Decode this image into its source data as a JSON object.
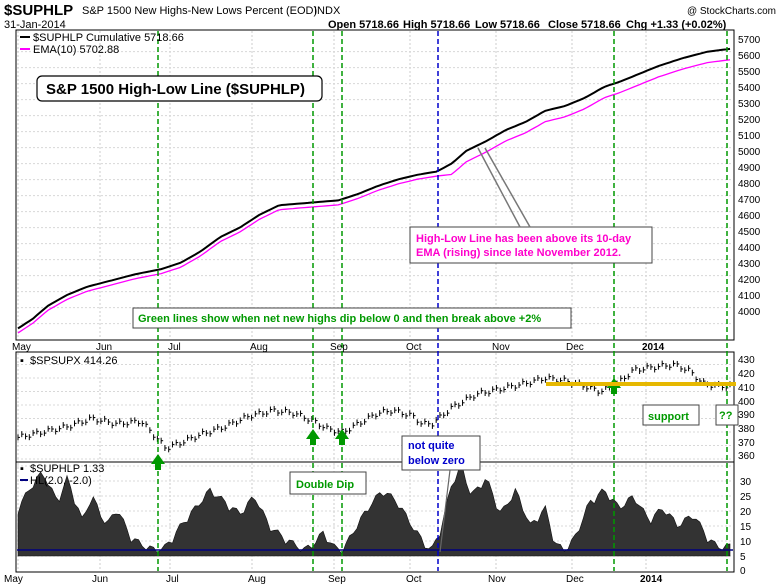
{
  "header": {
    "symbol": "$SUPHLP",
    "description": "S&P 1500 New Highs-New Lows Percent (EOD)",
    "exchange": "INDX",
    "date": "31-Jan-2014",
    "open": "Open 5718.66",
    "high": "High 5718.66",
    "low": "Low 5718.66",
    "close": "Close 5718.66",
    "chg": "Chg +1.33 (+0.02%)",
    "watermark": "@ StockCharts.com"
  },
  "colors": {
    "price_line": "#000000",
    "ema_line": "#ff00ff",
    "signal_green": "#009900",
    "signal_blue": "#0000cc",
    "support_yellow": "#e6b800",
    "hl_fill": "#333333",
    "hl_line": "#000080",
    "annot_magenta": "#ff00cc"
  },
  "months": [
    "May",
    "Jun",
    "Jul",
    "Aug",
    "Sep",
    "Oct",
    "Nov",
    "Dec",
    "2014"
  ],
  "panels": {
    "top": {
      "legend1": "$SUPHLP Cumulative 5718.66",
      "legend2": "EMA(10) 5702.88",
      "title_box": "S&P 1500 High-Low Line ($SUPHLP)",
      "note_green": "Green lines show when net new highs dip below 0 and then break above +2%",
      "note_magenta_1": "High-Low Line has been above its 10-day",
      "note_magenta_2": "EMA (rising) since late November 2012.",
      "ticks": [
        "5700",
        "5600",
        "5500",
        "5400",
        "5300",
        "5200",
        "5100",
        "5000",
        "4900",
        "4800",
        "4700",
        "4600",
        "4500",
        "4400",
        "4300",
        "4200",
        "4100",
        "4000"
      ]
    },
    "middle": {
      "legend": "$SPSUPX 414.26",
      "ticks": [
        "430",
        "420",
        "410",
        "400",
        "390",
        "380",
        "370",
        "360"
      ],
      "label_double_dip": "Double Dip",
      "label_not_quite_1": "not quite",
      "label_not_quite_2": "below zero",
      "label_support": "support",
      "label_qq": "??"
    },
    "bottom": {
      "legend1": "$SUPHLP 1.33",
      "legend2": "HL(2.0, -2.0)",
      "ticks": [
        "30",
        "25",
        "20",
        "15",
        "10",
        "5",
        "0"
      ]
    }
  },
  "chart_data": [
    {
      "type": "line",
      "name": "SUPHLP cumulative vs EMA(10)",
      "x": [
        "May",
        "Jun",
        "Jul",
        "Aug",
        "Sep",
        "Oct",
        "Nov",
        "Dec",
        "2014",
        "31-Jan-2014"
      ],
      "series": [
        {
          "name": "$SUPHLP Cumulative",
          "values": [
            3970,
            4240,
            4350,
            4600,
            4760,
            4890,
            5150,
            5380,
            5620,
            5718.66
          ]
        },
        {
          "name": "EMA(10)",
          "values": [
            3930,
            4220,
            4330,
            4570,
            4740,
            4870,
            5100,
            5330,
            5570,
            5702.88
          ]
        }
      ],
      "ylim": [
        3950,
        5750
      ]
    },
    {
      "type": "line",
      "name": "$SPSUPX",
      "x": [
        "May",
        "Jun",
        "Jul",
        "Aug",
        "Sep",
        "Oct",
        "Nov",
        "Dec",
        "2014",
        "31-Jan-2014"
      ],
      "series": [
        {
          "name": "$SPSUPX",
          "values": [
            375,
            388,
            375,
            398,
            390,
            398,
            412,
            418,
            425,
            414.26
          ]
        }
      ],
      "ylim": [
        360,
        432
      ]
    },
    {
      "type": "area",
      "name": "$SUPHLP net new highs %",
      "x": [
        "May",
        "Jun",
        "Jul",
        "Aug",
        "Sep",
        "Oct",
        "Nov",
        "Dec",
        "2014",
        "31-Jan-2014"
      ],
      "series": [
        {
          "name": "$SUPHLP",
          "values": [
            18,
            4,
            1,
            12,
            2,
            1,
            22,
            12,
            10,
            1.33
          ]
        }
      ],
      "hlines": [
        2.0,
        -2.0
      ],
      "ylim": [
        -1,
        33
      ]
    }
  ]
}
